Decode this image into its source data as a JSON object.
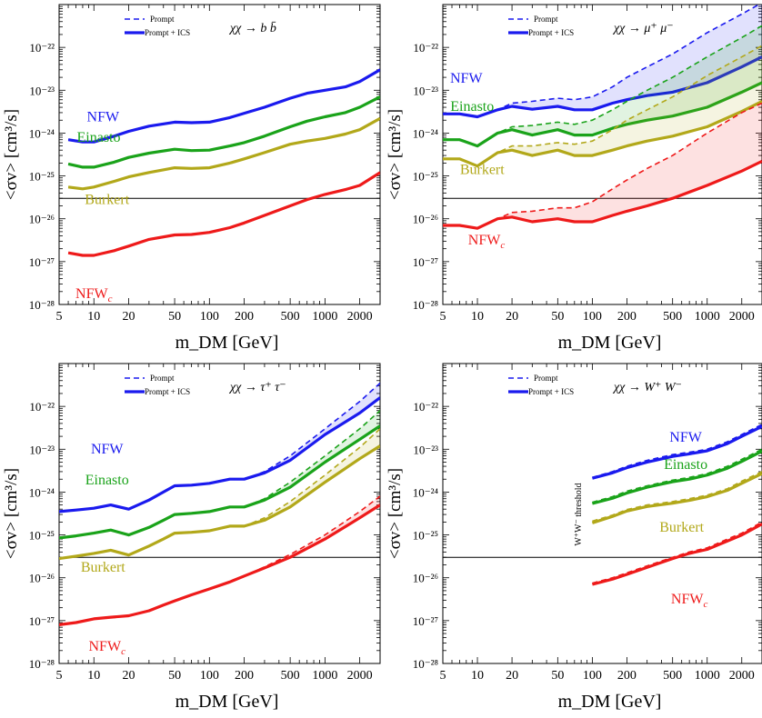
{
  "figure": {
    "ylabel": "<σv> [cm³/s]",
    "xlabel": "m_DM [GeV]",
    "legend": {
      "dashed": "Prompt",
      "solid": "Prompt + ICS"
    },
    "colors": {
      "NFW": "#1a1aee",
      "Einasto": "#1aa31a",
      "Burkert": "#b2a81a",
      "NFWc": "#ee1a1a",
      "threshold_line": "#000000",
      "frame": "#000000"
    },
    "x_ticks": [
      "5",
      "10",
      "20",
      "50",
      "100",
      "200",
      "500",
      "1000",
      "2000"
    ],
    "y_ticks": [
      "10⁻²⁸",
      "10⁻²⁷",
      "10⁻²⁶",
      "10⁻²⁵",
      "10⁻²⁴",
      "10⁻²³",
      "10⁻²²"
    ],
    "threshold_label": "W⁺W⁻ threshold"
  },
  "chart_data": [
    {
      "type": "line",
      "channel": "χχ → b b̄",
      "x_scale": "log",
      "y_scale": "log",
      "xlim": [
        5,
        3000
      ],
      "ylim": [
        1e-28,
        1e-21
      ],
      "hline": 3e-26,
      "series": [
        {
          "name": "NFW",
          "color": "#1a1aee",
          "label_pos": [
            12,
            1.9e-24
          ],
          "x": [
            6,
            8,
            10,
            15,
            20,
            30,
            50,
            70,
            100,
            150,
            200,
            300,
            500,
            700,
            1000,
            1500,
            2000,
            3000
          ],
          "prompt": [
            7e-25,
            6.2e-25,
            6.2e-25,
            8.5e-25,
            1.1e-24,
            1.45e-24,
            1.8e-24,
            1.75e-24,
            1.8e-24,
            2.3e-24,
            2.9e-24,
            4e-24,
            6.5e-24,
            8.5e-24,
            1e-23,
            1.2e-23,
            1.6e-23,
            3e-23
          ],
          "ics": [
            7e-25,
            6.2e-25,
            6.2e-25,
            8.5e-25,
            1.1e-24,
            1.45e-24,
            1.8e-24,
            1.75e-24,
            1.8e-24,
            2.3e-24,
            2.9e-24,
            4e-24,
            6.5e-24,
            8.5e-24,
            1e-23,
            1.2e-23,
            1.6e-23,
            3e-23
          ]
        },
        {
          "name": "Einasto",
          "color": "#1aa31a",
          "label_pos": [
            11,
            6.2e-25
          ],
          "x": [
            6,
            8,
            10,
            15,
            20,
            30,
            50,
            70,
            100,
            150,
            200,
            300,
            500,
            700,
            1000,
            1500,
            2000,
            3000
          ],
          "prompt": [
            1.9e-25,
            1.6e-25,
            1.6e-25,
            2.1e-25,
            2.7e-25,
            3.4e-25,
            4.2e-25,
            3.9e-25,
            4e-25,
            5e-25,
            6e-25,
            8.5e-25,
            1.4e-24,
            1.9e-24,
            2.4e-24,
            3e-24,
            4e-24,
            7e-24
          ],
          "ics": [
            1.9e-25,
            1.6e-25,
            1.6e-25,
            2.1e-25,
            2.7e-25,
            3.4e-25,
            4.2e-25,
            3.9e-25,
            4e-25,
            5e-25,
            6e-25,
            8.5e-25,
            1.4e-24,
            1.9e-24,
            2.4e-24,
            3e-24,
            4e-24,
            7e-24
          ]
        },
        {
          "name": "Burkert",
          "color": "#b2a81a",
          "label_pos": [
            13,
            2.2e-26
          ],
          "x": [
            6,
            8,
            10,
            15,
            20,
            30,
            50,
            70,
            100,
            150,
            200,
            300,
            500,
            700,
            1000,
            1500,
            2000,
            3000
          ],
          "prompt": [
            5.5e-26,
            5e-26,
            5.5e-26,
            7.5e-26,
            9.5e-26,
            1.2e-25,
            1.55e-25,
            1.5e-25,
            1.55e-25,
            2e-25,
            2.5e-25,
            3.5e-25,
            5.5e-25,
            6.5e-25,
            7.5e-25,
            9.5e-25,
            1.2e-24,
            2.2e-24
          ],
          "ics": [
            5.5e-26,
            5e-26,
            5.5e-26,
            7.5e-26,
            9.5e-26,
            1.2e-25,
            1.55e-25,
            1.5e-25,
            1.55e-25,
            2e-25,
            2.5e-25,
            3.5e-25,
            5.5e-25,
            6.5e-25,
            7.5e-25,
            9.5e-25,
            1.2e-24,
            2.2e-24
          ]
        },
        {
          "name": "NFW_c",
          "color": "#ee1a1a",
          "label_pos": [
            10,
            1.4e-28
          ],
          "x": [
            6,
            8,
            10,
            15,
            20,
            30,
            50,
            70,
            100,
            150,
            200,
            300,
            500,
            700,
            1000,
            1500,
            2000,
            3000
          ],
          "prompt": [
            1.6e-27,
            1.4e-27,
            1.4e-27,
            1.8e-27,
            2.3e-27,
            3.3e-27,
            4.2e-27,
            4.3e-27,
            4.8e-27,
            6.2e-27,
            8e-27,
            1.2e-26,
            2e-26,
            2.8e-26,
            3.7e-26,
            4.8e-26,
            6e-26,
            1.2e-25
          ],
          "ics": [
            1.6e-27,
            1.4e-27,
            1.4e-27,
            1.8e-27,
            2.3e-27,
            3.3e-27,
            4.2e-27,
            4.3e-27,
            4.8e-27,
            6.2e-27,
            8e-27,
            1.2e-26,
            2e-26,
            2.8e-26,
            3.7e-26,
            4.8e-26,
            6e-26,
            1.2e-25
          ]
        }
      ]
    },
    {
      "type": "line",
      "channel": "χχ → μ⁺ μ⁻",
      "x_scale": "log",
      "y_scale": "log",
      "xlim": [
        5,
        3000
      ],
      "ylim": [
        1e-28,
        1e-21
      ],
      "hline": 3e-26,
      "series": [
        {
          "name": "NFW",
          "color": "#1a1aee",
          "label_pos": [
            8,
            1.5e-23
          ],
          "x": [
            5,
            7,
            10,
            15,
            20,
            30,
            50,
            70,
            100,
            150,
            200,
            300,
            500,
            1000,
            2000,
            3000
          ],
          "prompt": [
            2.8e-24,
            2.8e-24,
            2.4e-24,
            3.5e-24,
            5e-24,
            5.5e-24,
            6.5e-24,
            6e-24,
            7e-24,
            1.2e-23,
            2e-23,
            3.5e-23,
            7e-23,
            2.2e-22,
            6e-22,
            1.1e-21
          ],
          "ics": [
            2.8e-24,
            2.8e-24,
            2.4e-24,
            3.5e-24,
            4.2e-24,
            3.6e-24,
            4.2e-24,
            3.5e-24,
            3.5e-24,
            5e-24,
            6e-24,
            7.5e-24,
            9e-24,
            1.5e-23,
            3.5e-23,
            6e-23
          ]
        },
        {
          "name": "Einasto",
          "color": "#1aa31a",
          "label_pos": [
            9,
            3.3e-24
          ],
          "x": [
            5,
            7,
            10,
            15,
            20,
            30,
            50,
            70,
            100,
            150,
            200,
            300,
            500,
            1000,
            2000,
            3000
          ],
          "prompt": [
            7e-25,
            7e-25,
            5e-25,
            1e-24,
            1.4e-24,
            1.5e-24,
            1.8e-24,
            1.6e-24,
            2e-24,
            3.5e-24,
            5.5e-24,
            1e-23,
            2e-23,
            6e-23,
            1.7e-22,
            3.2e-22
          ],
          "ics": [
            7e-25,
            7e-25,
            5e-25,
            1e-24,
            1.2e-24,
            9e-25,
            1.2e-24,
            9e-25,
            9e-25,
            1.3e-24,
            1.6e-24,
            2e-24,
            2.5e-24,
            4e-24,
            9e-24,
            1.5e-23
          ]
        },
        {
          "name": "Burkert",
          "color": "#b2a81a",
          "label_pos": [
            11,
            1.1e-25
          ],
          "x": [
            5,
            7,
            10,
            15,
            20,
            30,
            50,
            70,
            100,
            150,
            200,
            300,
            500,
            1000,
            2000,
            3000
          ],
          "prompt": [
            2.5e-25,
            2.5e-25,
            1.7e-25,
            3.5e-25,
            5e-25,
            5e-25,
            6e-25,
            5.5e-25,
            6.5e-25,
            1.2e-24,
            2e-24,
            3.5e-24,
            7e-24,
            2.2e-23,
            6e-23,
            1.1e-22
          ],
          "ics": [
            2.5e-25,
            2.5e-25,
            1.7e-25,
            3.5e-25,
            4e-25,
            3e-25,
            4e-25,
            3e-25,
            3e-25,
            4e-25,
            5e-25,
            6.5e-25,
            8.5e-25,
            1.4e-24,
            3.2e-24,
            5.5e-24
          ]
        },
        {
          "name": "NFW_c",
          "color": "#ee1a1a",
          "label_pos": [
            12,
            2.5e-27
          ],
          "x": [
            5,
            7,
            10,
            15,
            20,
            30,
            50,
            70,
            100,
            150,
            200,
            300,
            500,
            1000,
            2000,
            3000
          ],
          "prompt": [
            7e-27,
            7e-27,
            6e-27,
            1e-26,
            1.4e-26,
            1.5e-26,
            1.8e-26,
            1.8e-26,
            2.5e-26,
            5e-26,
            8e-26,
            1.5e-25,
            3e-25,
            1e-24,
            3e-24,
            5e-24
          ],
          "ics": [
            7e-27,
            7e-27,
            6e-27,
            1e-26,
            1.1e-26,
            8.5e-27,
            1e-26,
            8.5e-27,
            8.5e-27,
            1.2e-26,
            1.5e-26,
            2e-26,
            3e-26,
            6e-26,
            1.3e-25,
            2.2e-25
          ]
        }
      ]
    },
    {
      "type": "line",
      "channel": "χχ → τ⁺ τ⁻",
      "x_scale": "log",
      "y_scale": "log",
      "xlim": [
        5,
        3000
      ],
      "ylim": [
        1e-28,
        1e-21
      ],
      "hline": 3e-26,
      "series": [
        {
          "name": "NFW",
          "color": "#1a1aee",
          "label_pos": [
            13,
            8e-24
          ],
          "x": [
            5,
            7,
            10,
            14,
            20,
            30,
            40,
            50,
            70,
            100,
            150,
            200,
            300,
            500,
            1000,
            2000,
            3000
          ],
          "prompt": [
            3.5e-25,
            3.8e-25,
            4.2e-25,
            5e-25,
            4e-25,
            6.5e-25,
            1e-24,
            1.4e-24,
            1.45e-24,
            1.6e-24,
            2e-24,
            2e-24,
            3e-24,
            7e-24,
            3e-23,
            1.3e-22,
            3.5e-22
          ],
          "ics": [
            3.5e-25,
            3.8e-25,
            4.2e-25,
            5e-25,
            4e-25,
            6.5e-25,
            1e-24,
            1.4e-24,
            1.45e-24,
            1.6e-24,
            2e-24,
            2e-24,
            2.8e-24,
            5.5e-24,
            2.2e-23,
            7e-23,
            1.6e-22
          ]
        },
        {
          "name": "Einasto",
          "color": "#1aa31a",
          "label_pos": [
            13,
            1.5e-24
          ],
          "x": [
            5,
            7,
            10,
            14,
            20,
            30,
            40,
            50,
            70,
            100,
            150,
            200,
            300,
            500,
            1000,
            2000,
            3000
          ],
          "prompt": [
            8.5e-26,
            9.5e-26,
            1.1e-25,
            1.3e-25,
            1e-25,
            1.5e-25,
            2.2e-25,
            3e-25,
            3.2e-25,
            3.5e-25,
            4.5e-25,
            4.5e-25,
            7e-25,
            1.7e-24,
            7e-24,
            3e-23,
            8e-23
          ],
          "ics": [
            8.5e-26,
            9.5e-26,
            1.1e-25,
            1.3e-25,
            1e-25,
            1.5e-25,
            2.2e-25,
            3e-25,
            3.2e-25,
            3.5e-25,
            4.5e-25,
            4.5e-25,
            6.5e-25,
            1.3e-24,
            5e-24,
            1.7e-23,
            3.5e-23
          ]
        },
        {
          "name": "Burkert",
          "color": "#b2a81a",
          "label_pos": [
            12,
            1.4e-26
          ],
          "x": [
            5,
            7,
            10,
            14,
            20,
            30,
            40,
            50,
            70,
            100,
            150,
            200,
            300,
            500,
            1000,
            2000,
            3000
          ],
          "prompt": [
            2.8e-26,
            3.2e-26,
            3.7e-26,
            4.4e-26,
            3.4e-26,
            5.5e-26,
            8e-26,
            1.1e-25,
            1.15e-25,
            1.25e-25,
            1.6e-25,
            1.6e-25,
            2.5e-25,
            6e-25,
            2.5e-24,
            1.1e-23,
            3e-23
          ],
          "ics": [
            2.8e-26,
            3.2e-26,
            3.7e-26,
            4.4e-26,
            3.4e-26,
            5.5e-26,
            8e-26,
            1.1e-25,
            1.15e-25,
            1.25e-25,
            1.6e-25,
            1.6e-25,
            2.2e-25,
            4.5e-25,
            1.7e-24,
            6e-24,
            1.2e-23
          ]
        },
        {
          "name": "NFW_c",
          "color": "#ee1a1a",
          "label_pos": [
            13,
            2e-28
          ],
          "x": [
            5,
            7,
            10,
            14,
            20,
            30,
            40,
            50,
            70,
            100,
            150,
            200,
            300,
            500,
            1000,
            2000,
            3000
          ],
          "prompt": [
            8e-28,
            9e-28,
            1.1e-27,
            1.2e-27,
            1.3e-27,
            1.7e-27,
            2.3e-27,
            2.9e-27,
            4e-27,
            5.5e-27,
            8e-27,
            1.1e-26,
            1.8e-26,
            3.5e-26,
            1e-25,
            3.5e-25,
            8e-25
          ],
          "ics": [
            8e-28,
            9e-28,
            1.1e-27,
            1.2e-27,
            1.3e-27,
            1.7e-27,
            2.3e-27,
            2.9e-27,
            4e-27,
            5.5e-27,
            8e-27,
            1.1e-26,
            1.7e-26,
            3e-26,
            8e-26,
            2.5e-25,
            5e-25
          ]
        }
      ]
    },
    {
      "type": "line",
      "channel": "χχ → W⁺ W⁻",
      "x_scale": "log",
      "y_scale": "log",
      "xlim": [
        5,
        3000
      ],
      "ylim": [
        1e-28,
        1e-21
      ],
      "hline": 3e-26,
      "vline_label_x": 80,
      "series": [
        {
          "name": "NFW",
          "color": "#1a1aee",
          "label_pos": [
            650,
            1.5e-23
          ],
          "x": [
            100,
            150,
            200,
            300,
            500,
            700,
            1000,
            1500,
            2000,
            3000
          ],
          "prompt": [
            2.2e-24,
            3e-24,
            4e-24,
            5.5e-24,
            7.5e-24,
            8.5e-24,
            1e-23,
            1.5e-23,
            2.2e-23,
            3.8e-23
          ],
          "ics": [
            2.1e-24,
            2.8e-24,
            3.7e-24,
            5e-24,
            6.8e-24,
            7.8e-24,
            9.2e-24,
            1.35e-23,
            2e-23,
            3.4e-23
          ]
        },
        {
          "name": "Einasto",
          "color": "#1aa31a",
          "label_pos": [
            650,
            3.5e-24
          ],
          "x": [
            100,
            150,
            200,
            300,
            500,
            700,
            1000,
            1500,
            2000,
            3000
          ],
          "prompt": [
            5.8e-25,
            7.8e-25,
            1.05e-24,
            1.4e-24,
            1.9e-24,
            2.2e-24,
            2.7e-24,
            4e-24,
            5.8e-24,
            1e-23
          ],
          "ics": [
            5.4e-25,
            7.2e-25,
            9.5e-25,
            1.3e-24,
            1.75e-24,
            2e-24,
            2.5e-24,
            3.6e-24,
            5.2e-24,
            9e-24
          ]
        },
        {
          "name": "Burkert",
          "color": "#b2a81a",
          "label_pos": [
            600,
            1.2e-25
          ],
          "x": [
            100,
            150,
            200,
            300,
            500,
            700,
            1000,
            1500,
            2000,
            3000
          ],
          "prompt": [
            2.1e-25,
            2.9e-25,
            3.9e-25,
            5e-25,
            6e-25,
            7e-25,
            8.5e-25,
            1.2e-24,
            1.8e-24,
            3e-24
          ],
          "ics": [
            1.9e-25,
            2.7e-25,
            3.6e-25,
            4.6e-25,
            5.5e-25,
            6.4e-25,
            7.8e-25,
            1.1e-24,
            1.6e-24,
            2.7e-24
          ]
        },
        {
          "name": "NFW_c",
          "color": "#ee1a1a",
          "label_pos": [
            700,
            2.5e-27
          ],
          "x": [
            100,
            150,
            200,
            300,
            500,
            700,
            1000,
            1500,
            2000,
            3000
          ],
          "prompt": [
            7.5e-27,
            1e-26,
            1.3e-26,
            1.9e-26,
            3e-26,
            4e-26,
            5e-26,
            8e-26,
            1.1e-25,
            2e-25
          ],
          "ics": [
            7e-27,
            9.3e-27,
            1.2e-26,
            1.75e-26,
            2.8e-26,
            3.7e-26,
            4.6e-26,
            7.2e-26,
            1e-25,
            1.8e-25
          ]
        }
      ]
    }
  ]
}
